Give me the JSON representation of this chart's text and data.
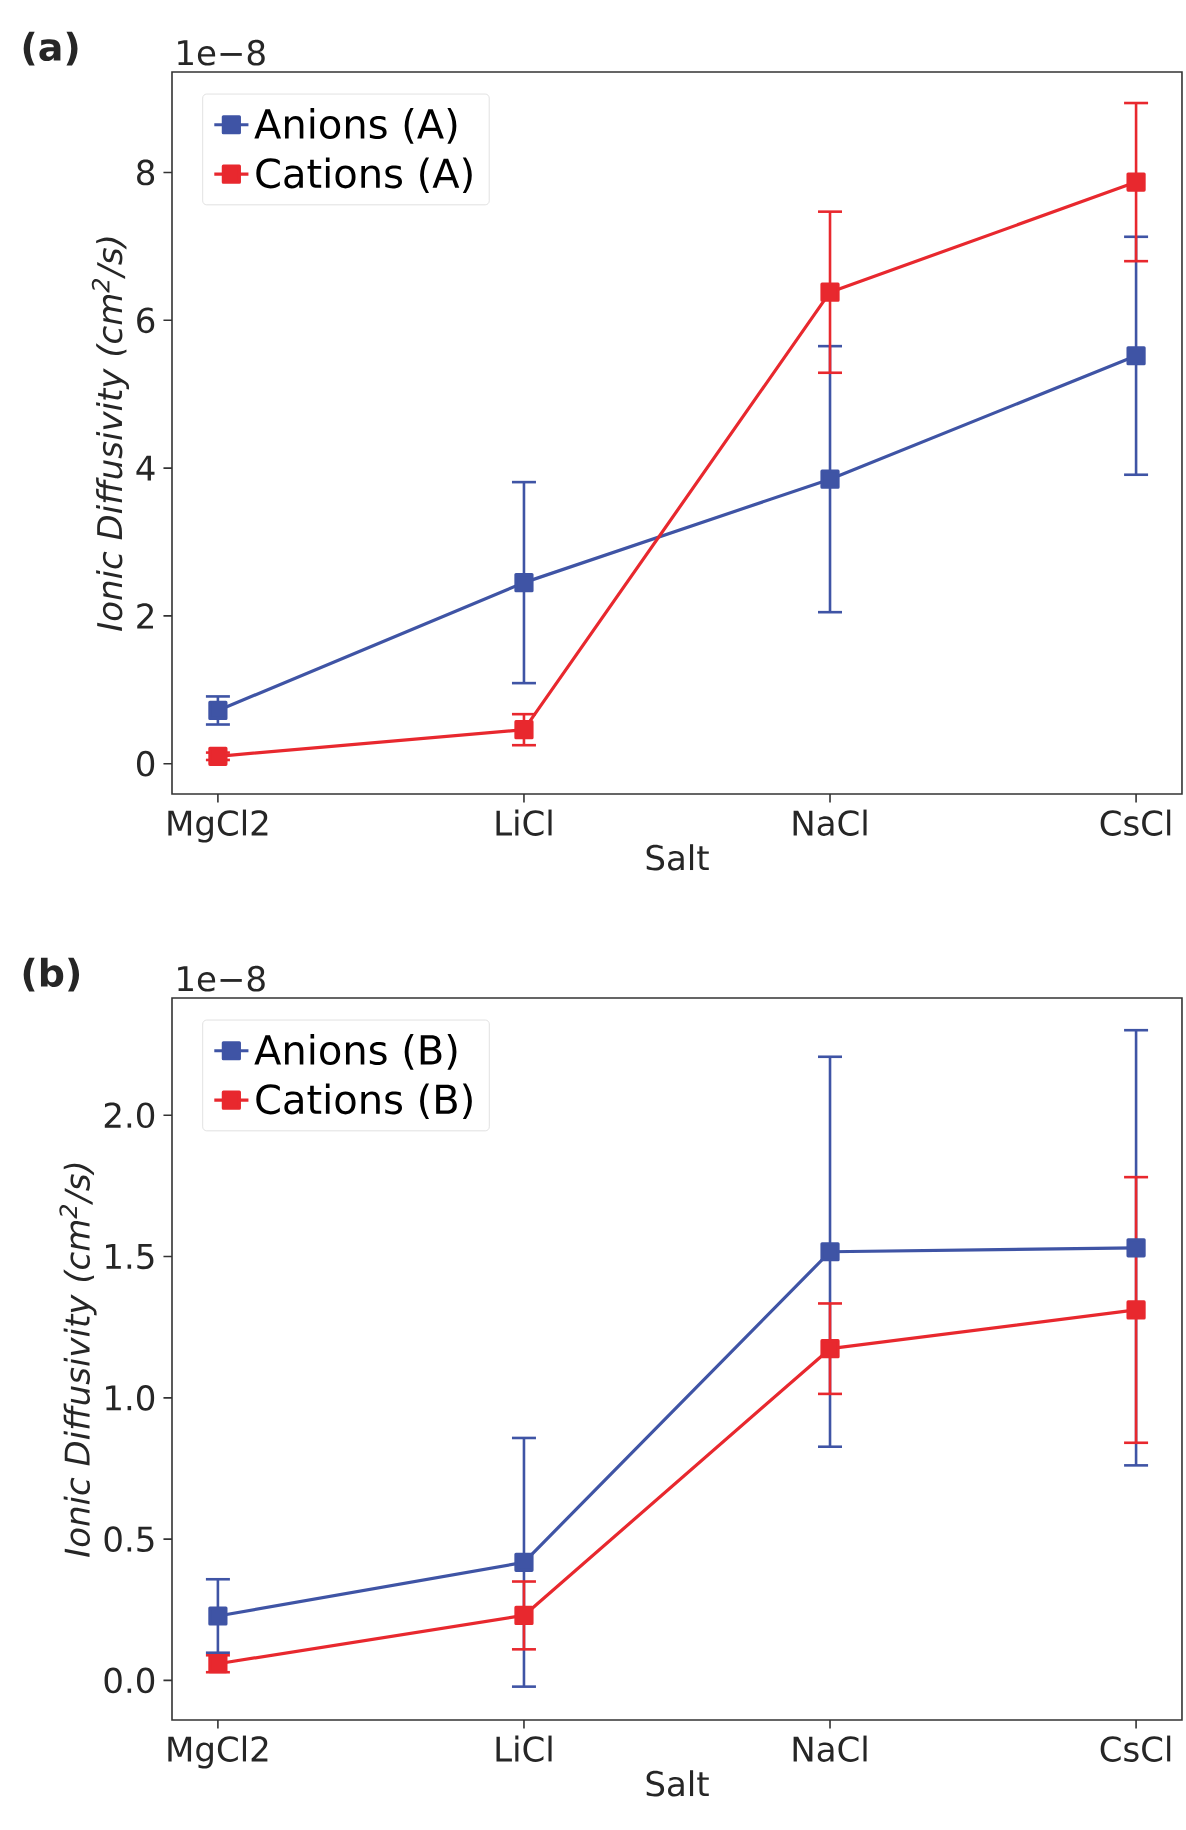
{
  "chart_data": [
    {
      "type": "line",
      "title": "(a)",
      "xlabel": "Salt",
      "ylabel": "Ionic Diffusivity (cm$^{2}$/s)",
      "annotations": [
        "1e−8"
      ],
      "categories": [
        "MgCl2",
        "LiCl",
        "NaCl",
        "CsCl"
      ],
      "series": [
        {
          "name": "Anions (A)",
          "color": "#3f54a5",
          "values": [
            0.72,
            2.45,
            3.85,
            5.52
          ],
          "errors": [
            0.19,
            1.36,
            1.8,
            1.61
          ]
        },
        {
          "name": "Cations (A)",
          "color": "#e8282e",
          "values": [
            0.1,
            0.46,
            6.38,
            7.87
          ],
          "errors": [
            0.05,
            0.21,
            1.09,
            1.07
          ]
        }
      ],
      "ylim": [
        -0.41,
        9.36
      ],
      "yticks": [
        0,
        2,
        4,
        6,
        8
      ],
      "legend": "top left",
      "marker": "square",
      "line_style": "solid",
      "grid": false
    },
    {
      "type": "line",
      "title": "(b)",
      "xlabel": "Salt",
      "ylabel": "Ionic Diffusivity (cm$^{2}$/s)",
      "annotations": [
        "1e−8"
      ],
      "categories": [
        "MgCl2",
        "LiCl",
        "NaCl",
        "CsCl"
      ],
      "series": [
        {
          "name": "Anions (B)",
          "color": "#3f54a5",
          "values": [
            0.228,
            0.418,
            1.517,
            1.531
          ],
          "errors": [
            0.13,
            0.44,
            0.69,
            0.77
          ]
        },
        {
          "name": "Cations (B)",
          "color": "#e8282e",
          "values": [
            0.059,
            0.23,
            1.174,
            1.311
          ],
          "errors": [
            0.03,
            0.12,
            0.16,
            0.47
          ]
        }
      ],
      "ylim": [
        -0.14,
        2.415
      ],
      "yticks": [
        {
          "value": 0,
          "label": "0.0"
        },
        {
          "value": 0.5,
          "label": "0.5"
        },
        {
          "value": 1,
          "label": "1.0"
        },
        {
          "value": 1.5,
          "label": "1.5"
        },
        {
          "value": 2,
          "label": "2.0"
        }
      ],
      "legend": "top left",
      "marker": "square",
      "line_style": "solid",
      "grid": false
    }
  ]
}
